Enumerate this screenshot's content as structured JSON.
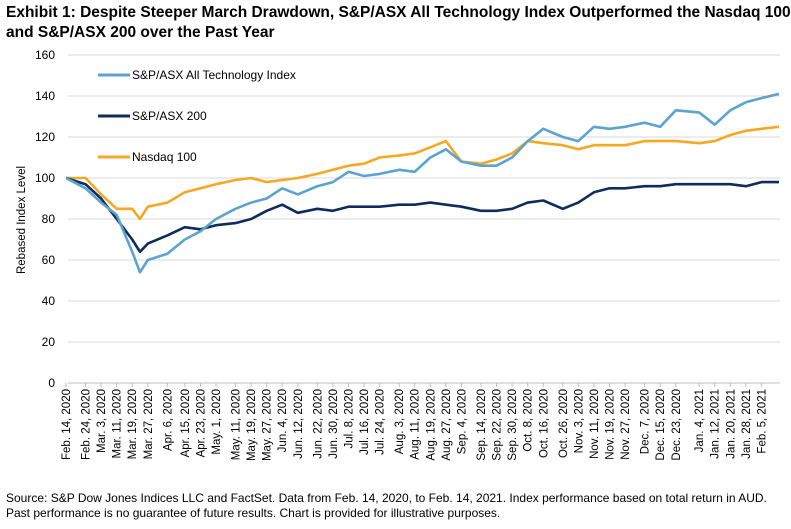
{
  "chart_data": {
    "type": "line",
    "title": "Exhibit 1: Despite Steeper March Drawdown, S&P/ASX All Technology Index Outperformed the Nasdaq 100 and S&P/ASX 200 over the Past Year",
    "xlabel": "",
    "ylabel": "Rebased Index Level",
    "ylim": [
      0,
      160
    ],
    "yticks": [
      0,
      20,
      40,
      60,
      80,
      100,
      120,
      140,
      160
    ],
    "grid": "horizontal",
    "legend_position": "top-left",
    "x_tick_labels": [
      "Feb. 14, 2020",
      "Feb. 24, 2020",
      "Mar. 3, 2020",
      "Mar. 11, 2020",
      "Mar. 19, 2020",
      "Mar. 27, 2020",
      "Apr. 6, 2020",
      "Apr. 15, 2020",
      "Apr. 23, 2020",
      "May. 1, 2020",
      "May. 11, 2020",
      "May. 19, 2020",
      "May. 27, 2020",
      "Jun. 4, 2020",
      "Jun. 12, 2020",
      "Jun. 22, 2020",
      "Jun. 30, 2020",
      "Jul. 8, 2020",
      "Jul. 16, 2020",
      "Jul. 24, 2020",
      "Aug. 3, 2020",
      "Aug. 11, 2020",
      "Aug. 19, 2020",
      "Aug. 27, 2020",
      "Sep. 4, 2020",
      "Sep. 14, 2020",
      "Sep. 22, 2020",
      "Sep. 30, 2020",
      "Oct. 8, 2020",
      "Oct. 16, 2020",
      "Oct. 26, 2020",
      "Nov. 3, 2020",
      "Nov. 11, 2020",
      "Nov. 19, 2020",
      "Nov. 27, 2020",
      "Dec. 7, 2020",
      "Dec. 15, 2020",
      "Dec. 23, 2020",
      "Jan. 4, 2021",
      "Jan. 12, 2021",
      "Jan. 20, 2021",
      "Jan. 28, 2021",
      "Feb. 5, 2021"
    ],
    "x": [
      "Feb. 14, 2020",
      "Feb. 24, 2020",
      "Mar. 3, 2020",
      "Mar. 11, 2020",
      "Mar. 19, 2020",
      "Mar. 23, 2020",
      "Mar. 27, 2020",
      "Apr. 6, 2020",
      "Apr. 15, 2020",
      "Apr. 23, 2020",
      "May. 1, 2020",
      "May. 11, 2020",
      "May. 19, 2020",
      "May. 27, 2020",
      "Jun. 4, 2020",
      "Jun. 12, 2020",
      "Jun. 22, 2020",
      "Jun. 30, 2020",
      "Jul. 8, 2020",
      "Jul. 16, 2020",
      "Jul. 24, 2020",
      "Aug. 3, 2020",
      "Aug. 11, 2020",
      "Aug. 19, 2020",
      "Aug. 27, 2020",
      "Sep. 4, 2020",
      "Sep. 14, 2020",
      "Sep. 22, 2020",
      "Sep. 30, 2020",
      "Oct. 8, 2020",
      "Oct. 16, 2020",
      "Oct. 26, 2020",
      "Nov. 3, 2020",
      "Nov. 11, 2020",
      "Nov. 19, 2020",
      "Nov. 27, 2020",
      "Dec. 7, 2020",
      "Dec. 15, 2020",
      "Dec. 23, 2020",
      "Jan. 4, 2021",
      "Jan. 12, 2021",
      "Jan. 20, 2021",
      "Jan. 28, 2021",
      "Feb. 5, 2021",
      "Feb. 14, 2021"
    ],
    "series": [
      {
        "name": "S&P/ASX All Technology Index",
        "color": "#5BA3D0",
        "values": [
          100,
          95,
          88,
          82,
          64,
          54,
          60,
          63,
          70,
          74,
          80,
          85,
          88,
          90,
          95,
          92,
          96,
          98,
          103,
          101,
          102,
          104,
          103,
          110,
          114,
          108,
          106,
          106,
          110,
          118,
          124,
          120,
          118,
          125,
          124,
          125,
          127,
          125,
          133,
          132,
          126,
          133,
          137,
          139,
          141
        ]
      },
      {
        "name": "S&P/ASX 200",
        "color": "#0E2D5C",
        "values": [
          100,
          97,
          90,
          80,
          70,
          64,
          68,
          72,
          76,
          75,
          77,
          78,
          80,
          84,
          87,
          83,
          85,
          84,
          86,
          86,
          86,
          87,
          87,
          88,
          87,
          86,
          84,
          84,
          85,
          88,
          89,
          85,
          88,
          93,
          95,
          95,
          96,
          96,
          97,
          97,
          97,
          97,
          96,
          98,
          98
        ]
      },
      {
        "name": "Nasdaq 100",
        "color": "#F7A823",
        "values": [
          100,
          100,
          92,
          85,
          85,
          80,
          86,
          88,
          93,
          95,
          97,
          99,
          100,
          98,
          99,
          100,
          102,
          104,
          106,
          107,
          110,
          111,
          112,
          115,
          118,
          108,
          107,
          109,
          112,
          118,
          117,
          116,
          114,
          116,
          116,
          116,
          118,
          118,
          118,
          117,
          118,
          121,
          123,
          124,
          125
        ]
      }
    ]
  },
  "footnote": "Source: S&P Dow Jones Indices LLC and FactSet. Data from Feb. 14, 2020, to Feb. 14, 2021. Index performance based on total return in AUD. Past performance is no guarantee of future results. Chart is provided for illustrative purposes."
}
